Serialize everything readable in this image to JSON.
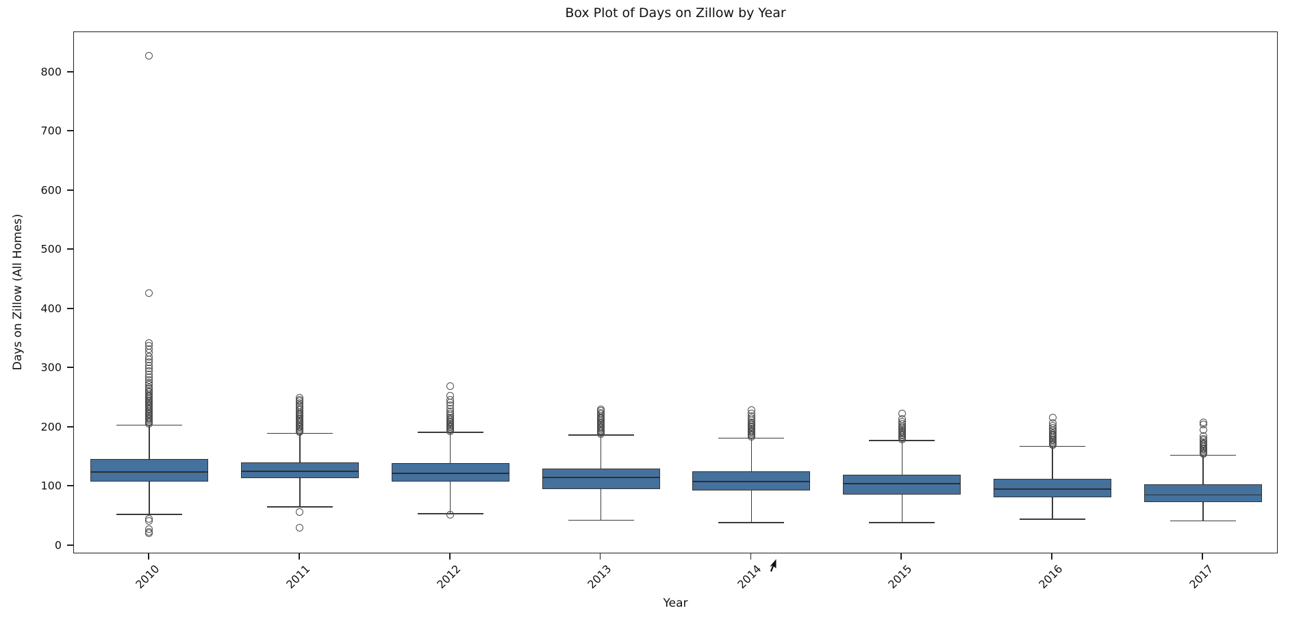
{
  "figure": {
    "title": "Box Plot of Days on Zillow by Year",
    "xlabel": "Year",
    "ylabel": "Days on Zillow (All Homes)",
    "colors": {
      "box_fill": "#45719D",
      "box_edge": "#333333",
      "whisker": "#3a3a3a",
      "flier_edge": "#4c4c4c",
      "spine": "#1f1f1f",
      "background": "#ffffff"
    }
  },
  "chart_data": {
    "type": "boxplot",
    "title": "Box Plot of Days on Zillow by Year",
    "xlabel": "Year",
    "ylabel": "Days on Zillow (All Homes)",
    "categories": [
      "2010",
      "2011",
      "2012",
      "2013",
      "2014",
      "2015",
      "2016",
      "2017"
    ],
    "yticks": [
      0,
      100,
      200,
      300,
      400,
      500,
      600,
      700,
      800
    ],
    "ylim": [
      -14,
      868
    ],
    "grid": false,
    "legend": null,
    "series": [
      {
        "year": "2010",
        "whisker_low": 53,
        "q1": 109,
        "median": 125,
        "q3": 147,
        "whisker_high": 204,
        "outliers_low": [
          45,
          42,
          28,
          24,
          21
        ],
        "outliers_high": [
          206,
          208,
          210,
          212,
          214,
          216,
          218,
          220,
          222,
          224,
          226,
          228,
          230,
          232,
          234,
          236,
          238,
          240,
          242,
          244,
          246,
          248,
          250,
          252,
          254,
          256,
          259,
          262,
          265,
          268,
          272,
          276,
          280,
          285,
          290,
          295,
          300,
          305,
          310,
          315,
          320,
          326,
          332,
          338,
          343,
          427,
          828
        ]
      },
      {
        "year": "2011",
        "whisker_low": 66,
        "q1": 114,
        "median": 126,
        "q3": 141,
        "whisker_high": 190,
        "outliers_low": [
          57,
          31
        ],
        "outliers_high": [
          192,
          194,
          196,
          198,
          200,
          202,
          204,
          206,
          208,
          210,
          212,
          214,
          216,
          218,
          220,
          222,
          224,
          226,
          229,
          232,
          235,
          238,
          241,
          244,
          247,
          250
        ]
      },
      {
        "year": "2012",
        "whisker_low": 54,
        "q1": 108,
        "median": 122,
        "q3": 140,
        "whisker_high": 192,
        "outliers_low": [
          52
        ],
        "outliers_high": [
          194,
          196,
          198,
          200,
          202,
          204,
          206,
          208,
          210,
          212,
          214,
          217,
          220,
          223,
          227,
          232,
          237,
          242,
          247,
          254,
          270
        ]
      },
      {
        "year": "2013",
        "whisker_low": 43,
        "q1": 96,
        "median": 115,
        "q3": 130,
        "whisker_high": 187,
        "outliers_low": [],
        "outliers_high": [
          189,
          191,
          193,
          195,
          197,
          199,
          201,
          203,
          205,
          207,
          209,
          211,
          213,
          215,
          217,
          219,
          222,
          225,
          228,
          230
        ]
      },
      {
        "year": "2014",
        "whisker_low": 39,
        "q1": 93,
        "median": 109,
        "q3": 126,
        "whisker_high": 182,
        "outliers_low": [],
        "outliers_high": [
          184,
          186,
          188,
          190,
          192,
          194,
          196,
          198,
          200,
          202,
          204,
          206,
          209,
          212,
          215,
          219,
          224,
          229
        ]
      },
      {
        "year": "2015",
        "whisker_low": 39,
        "q1": 86,
        "median": 105,
        "q3": 120,
        "whisker_high": 178,
        "outliers_low": [],
        "outliers_high": [
          180,
          182,
          184,
          186,
          188,
          190,
          192,
          194,
          196,
          198,
          200,
          203,
          206,
          210,
          214,
          223
        ]
      },
      {
        "year": "2016",
        "whisker_low": 45,
        "q1": 82,
        "median": 96,
        "q3": 113,
        "whisker_high": 168,
        "outliers_low": [],
        "outliers_high": [
          170,
          172,
          174,
          176,
          178,
          180,
          182,
          184,
          186,
          188,
          190,
          193,
          196,
          199,
          203,
          207,
          217
        ]
      },
      {
        "year": "2017",
        "whisker_low": 42,
        "q1": 74,
        "median": 86,
        "q3": 104,
        "whisker_high": 153,
        "outliers_low": [],
        "outliers_high": [
          155,
          157,
          159,
          161,
          163,
          165,
          167,
          169,
          171,
          173,
          175,
          178,
          181,
          185,
          196,
          205,
          208
        ]
      }
    ]
  }
}
